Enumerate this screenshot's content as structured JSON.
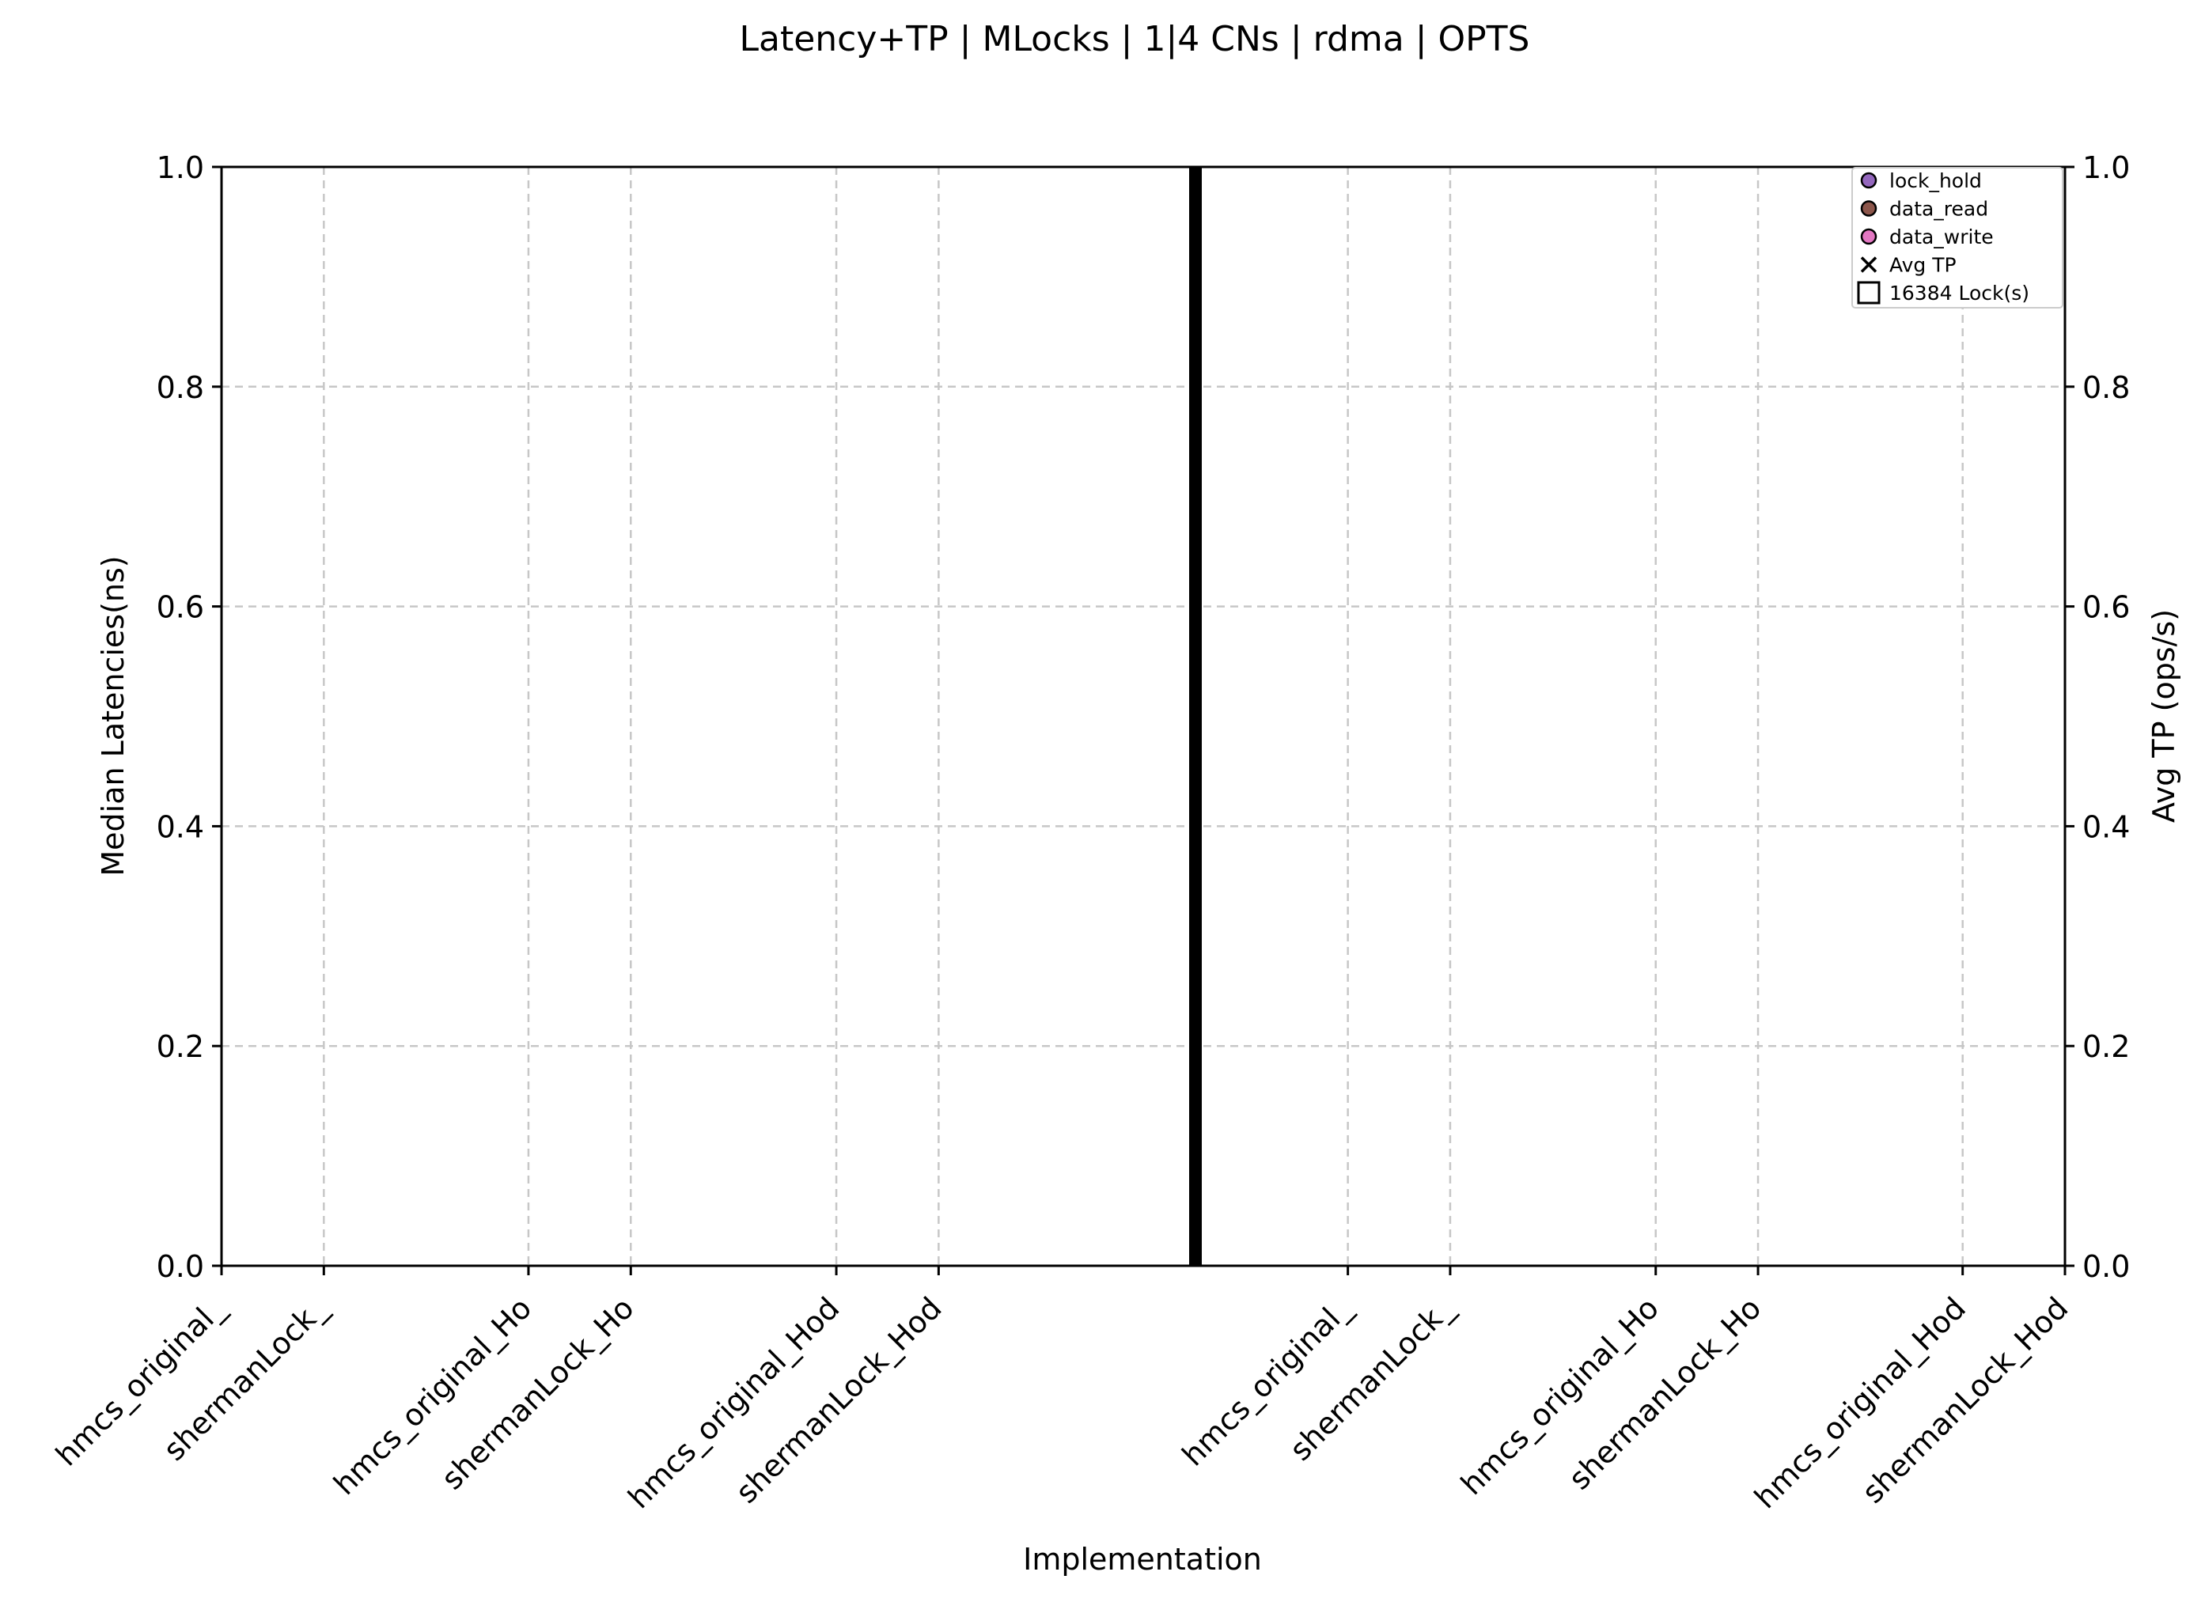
{
  "chart_data": {
    "type": "scatter",
    "title": "Latency+TP | MLocks | 1|4 CNs | rdma | OPTS",
    "xlabel": "Implementation",
    "ylabel": "Median Latencies(ns)",
    "ylabel_right": "Avg TP (ops/s)",
    "ylim": [
      0,
      1
    ],
    "ylim_right": [
      0,
      1
    ],
    "yticks": [
      "0.0",
      "0.2",
      "0.4",
      "0.6",
      "0.8",
      "1.0"
    ],
    "yticks_right": [
      "0.0",
      "0.2",
      "0.4",
      "0.6",
      "0.8",
      "1.0"
    ],
    "categories": [
      "hmcs_original_",
      "shermanLock_",
      "hmcs_original_Ho",
      "shermanLock_Ho",
      "hmcs_original_Hod",
      "shermanLock_Hod",
      "hmcs_original_",
      "shermanLock_",
      "hmcs_original_Ho",
      "shermanLock_Ho",
      "hmcs_original_Hod",
      "shermanLock_Hod"
    ],
    "grid": true,
    "group_separator": true,
    "legend_position": "top-right",
    "legend": [
      {
        "label": "lock_hold",
        "marker": "circle",
        "color": "#9467bd"
      },
      {
        "label": "data_read",
        "marker": "circle",
        "color": "#8c564b"
      },
      {
        "label": "data_write",
        "marker": "circle",
        "color": "#e377c2"
      },
      {
        "label": "Avg TP",
        "marker": "x",
        "color": "#000000"
      },
      {
        "label": "16384 Lock(s)",
        "marker": "square",
        "color": "#ffffff"
      }
    ],
    "series": []
  }
}
